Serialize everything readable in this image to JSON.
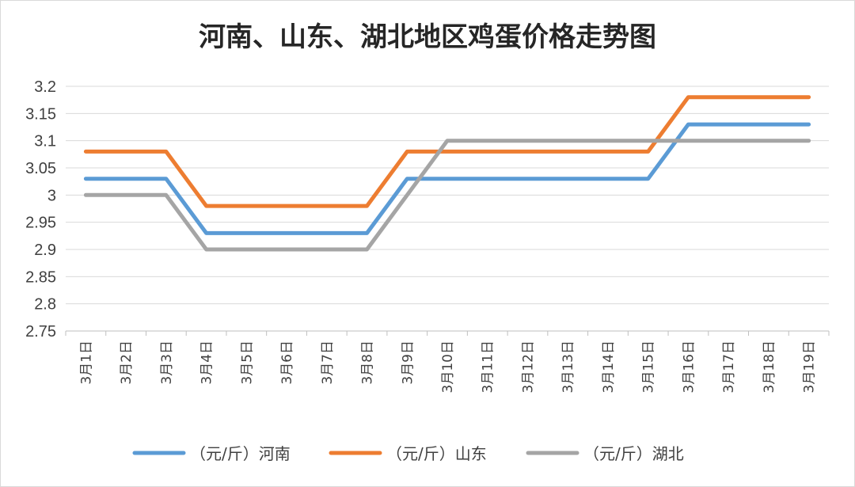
{
  "chart_data": {
    "type": "line",
    "title": "河南、山东、湖北地区鸡蛋价格走势图",
    "categories": [
      "3月1日",
      "3月2日",
      "3月3日",
      "3月4日",
      "3月5日",
      "3月6日",
      "3月7日",
      "3月8日",
      "3月9日",
      "3月10日",
      "3月11日",
      "3月12日",
      "3月13日",
      "3月14日",
      "3月15日",
      "3月16日",
      "3月17日",
      "3月18日",
      "3月19日"
    ],
    "yticks": [
      "3.2",
      "3.15",
      "3.1",
      "3.05",
      "3",
      "2.95",
      "2.9",
      "2.85",
      "2.8",
      "2.75"
    ],
    "ylim": [
      2.75,
      3.2
    ],
    "grid": true,
    "legend_position": "bottom",
    "series": [
      {
        "name": "（元/斤）河南",
        "color": "#5b9bd5",
        "values": [
          3.03,
          3.03,
          3.03,
          2.93,
          2.93,
          2.93,
          2.93,
          2.93,
          3.03,
          3.03,
          3.03,
          3.03,
          3.03,
          3.03,
          3.03,
          3.13,
          3.13,
          3.13,
          3.13
        ]
      },
      {
        "name": "（元/斤）山东",
        "color": "#ed7d31",
        "values": [
          3.08,
          3.08,
          3.08,
          2.98,
          2.98,
          2.98,
          2.98,
          2.98,
          3.08,
          3.08,
          3.08,
          3.08,
          3.08,
          3.08,
          3.08,
          3.18,
          3.18,
          3.18,
          3.18
        ]
      },
      {
        "name": "（元/斤）湖北",
        "color": "#a5a5a5",
        "values": [
          3.0,
          3.0,
          3.0,
          2.9,
          2.9,
          2.9,
          2.9,
          2.9,
          3.0,
          3.1,
          3.1,
          3.1,
          3.1,
          3.1,
          3.1,
          3.1,
          3.1,
          3.1,
          3.1
        ]
      }
    ]
  }
}
